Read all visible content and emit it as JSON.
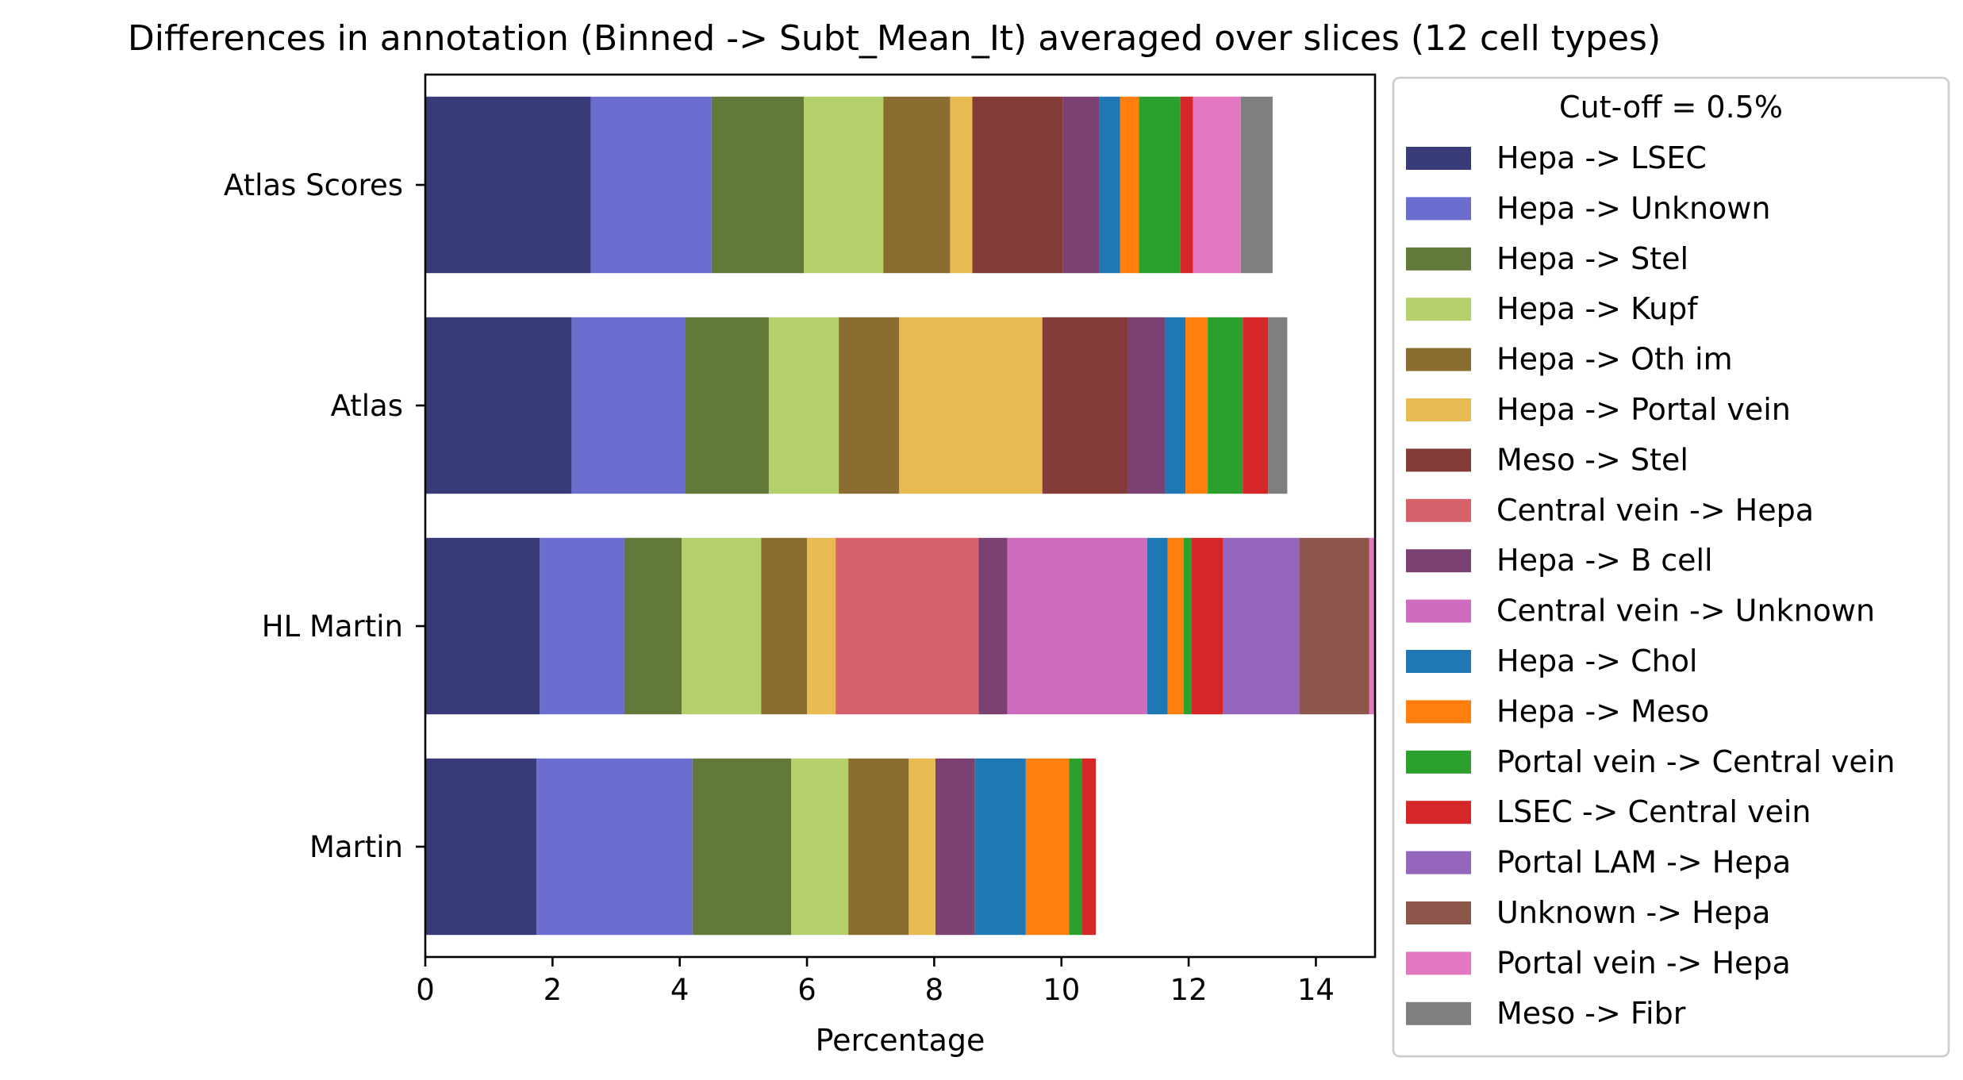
{
  "chart_data": {
    "type": "bar",
    "orientation": "horizontal",
    "stacked": true,
    "title": "Differences in annotation (Binned -> Subt_Mean_It) averaged over slices (12 cell types)",
    "xlabel": "Percentage",
    "ylabel": "",
    "xlim": [
      0,
      14.93
    ],
    "xticks": [
      0,
      2,
      4,
      6,
      8,
      10,
      12,
      14
    ],
    "grid": false,
    "categories": [
      "Atlas Scores",
      "Atlas",
      "HL Martin",
      "Martin"
    ],
    "legend": {
      "title": "Cut-off = 0.5%",
      "placement": "outside-right"
    },
    "series": [
      {
        "name": "Hepa -> LSEC",
        "color": "#393b79",
        "values": [
          2.6,
          2.3,
          1.8,
          1.75
        ]
      },
      {
        "name": "Hepa -> Unknown",
        "color": "#6b6ecf",
        "values": [
          1.9,
          1.78,
          1.33,
          2.45
        ]
      },
      {
        "name": "Hepa -> Stel",
        "color": "#637939",
        "values": [
          1.45,
          1.32,
          0.9,
          1.55
        ]
      },
      {
        "name": "Hepa -> Kupf",
        "color": "#b5cf6b",
        "values": [
          1.25,
          1.1,
          1.25,
          0.9
        ]
      },
      {
        "name": "Hepa -> Oth im",
        "color": "#8c6d31",
        "values": [
          1.05,
          0.95,
          0.72,
          0.95
        ]
      },
      {
        "name": "Hepa -> Portal vein",
        "color": "#e7ba52",
        "values": [
          0.35,
          2.25,
          0.45,
          0.42
        ]
      },
      {
        "name": "Meso -> Stel",
        "color": "#843c39",
        "values": [
          1.42,
          1.35,
          0,
          0
        ]
      },
      {
        "name": "Central vein -> Hepa",
        "color": "#d6616b",
        "values": [
          0,
          0,
          2.25,
          0
        ]
      },
      {
        "name": "Hepa -> B cell",
        "color": "#7b4173",
        "values": [
          0.58,
          0.58,
          0.45,
          0.62
        ]
      },
      {
        "name": "Central vein -> Unknown",
        "color": "#ce6dbd",
        "values": [
          0,
          0,
          2.2,
          0
        ]
      },
      {
        "name": "Hepa -> Chol",
        "color": "#1f77b4",
        "values": [
          0.32,
          0.32,
          0.32,
          0.8
        ]
      },
      {
        "name": "Hepa -> Meso",
        "color": "#ff7f0e",
        "values": [
          0.3,
          0.35,
          0.25,
          0.68
        ]
      },
      {
        "name": "Portal vein -> Central vein",
        "color": "#2ca02c",
        "values": [
          0.65,
          0.55,
          0.12,
          0.2
        ]
      },
      {
        "name": "LSEC -> Central vein",
        "color": "#d62728",
        "values": [
          0.2,
          0.4,
          0.5,
          0.22
        ]
      },
      {
        "name": "Portal LAM -> Hepa",
        "color": "#9467bd",
        "values": [
          0,
          0,
          1.2,
          0
        ]
      },
      {
        "name": "Unknown -> Hepa",
        "color": "#8c564b",
        "values": [
          0,
          0,
          1.1,
          0
        ]
      },
      {
        "name": "Portal vein -> Hepa",
        "color": "#e377c2",
        "values": [
          0.75,
          0,
          0.1,
          0
        ]
      },
      {
        "name": "Meso -> Fibr",
        "color": "#7f7f7f",
        "values": [
          0.5,
          0.3,
          0,
          0
        ]
      }
    ]
  }
}
